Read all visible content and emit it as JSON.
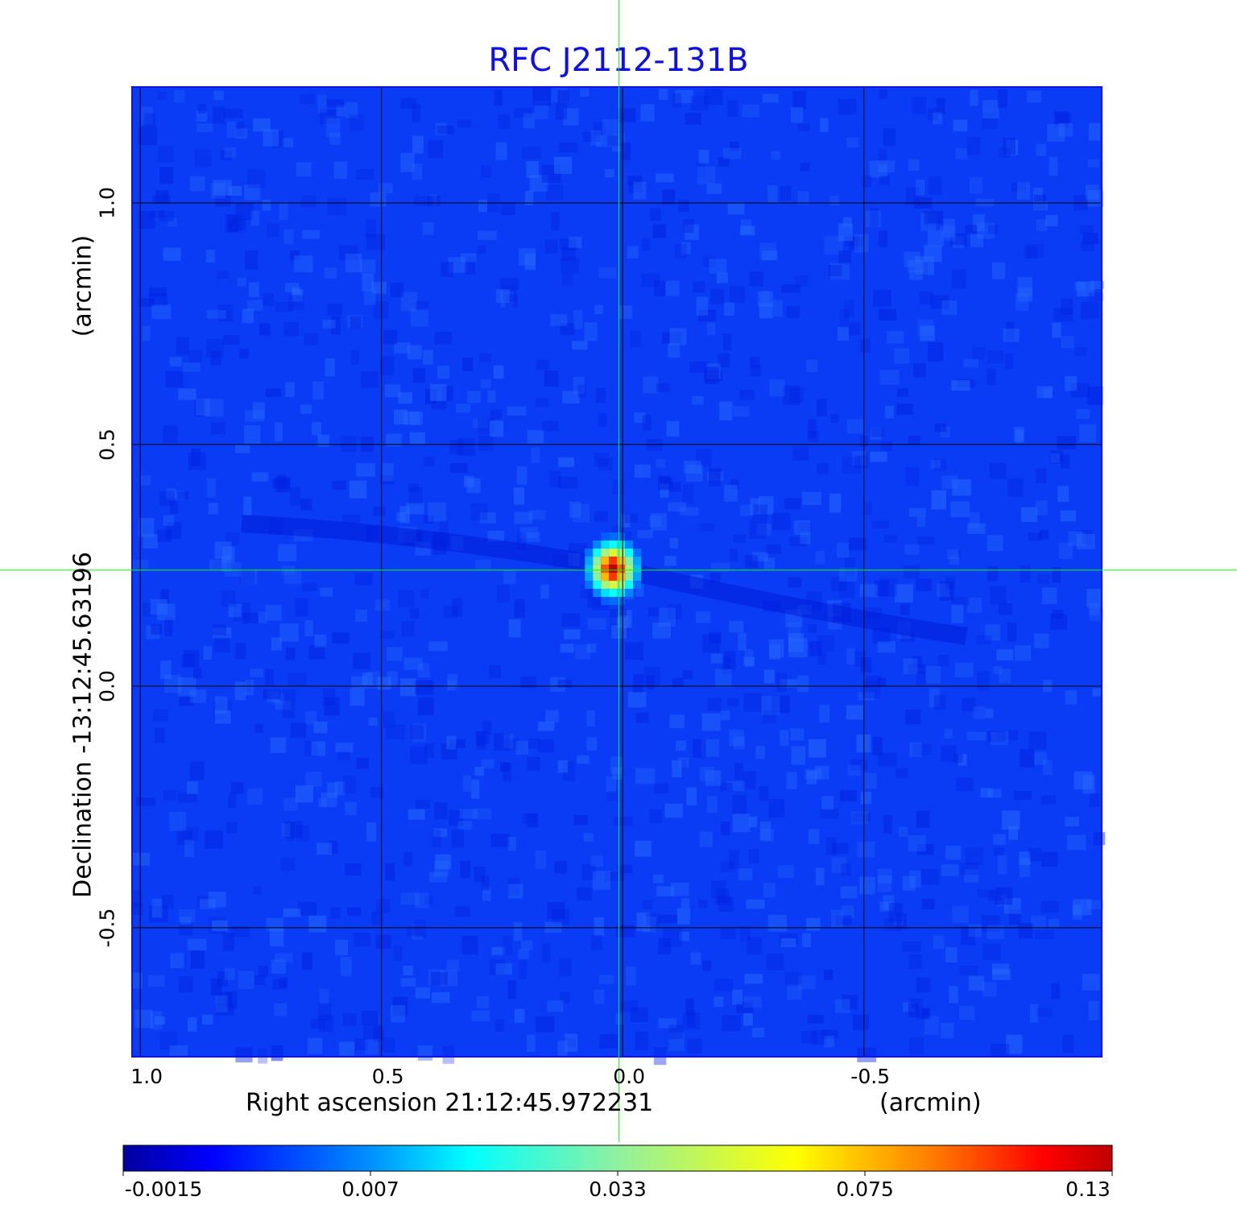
{
  "chart_data": {
    "type": "heatmap",
    "title": "RFC J2112-131B",
    "xlabel": "Right ascension  21:12:45.972231",
    "xunit": "(arcmin)",
    "ylabel": "Declination  -13:12:45.63196",
    "yunit": "(arcmin)",
    "xlim": [
      1.017,
      -0.993
    ],
    "ylim": [
      -0.767,
      1.24
    ],
    "xticks": [
      "1.0",
      "0.5",
      "0.0",
      "-0.5"
    ],
    "xtick_values": [
      1.0,
      0.5,
      0.0,
      -0.5
    ],
    "yticks": [
      "1.0",
      "0.5",
      "0.0",
      "-0.5"
    ],
    "ytick_values": [
      1.0,
      0.5,
      0.0,
      -0.5
    ],
    "grid": true,
    "colormap": "jet",
    "colorbar": {
      "ticks": [
        "-0.0015",
        "0.007",
        "0.033",
        "0.075",
        "0.13"
      ],
      "range": [
        -0.0015,
        0.13
      ],
      "placement": "bottom"
    },
    "source": {
      "x": 0.02,
      "y": 0.243,
      "peak": 0.13
    },
    "crosshair": {
      "x": 0.008,
      "y": 0.24,
      "color": "#00ff00"
    },
    "background_color": "#0a3cf5"
  }
}
